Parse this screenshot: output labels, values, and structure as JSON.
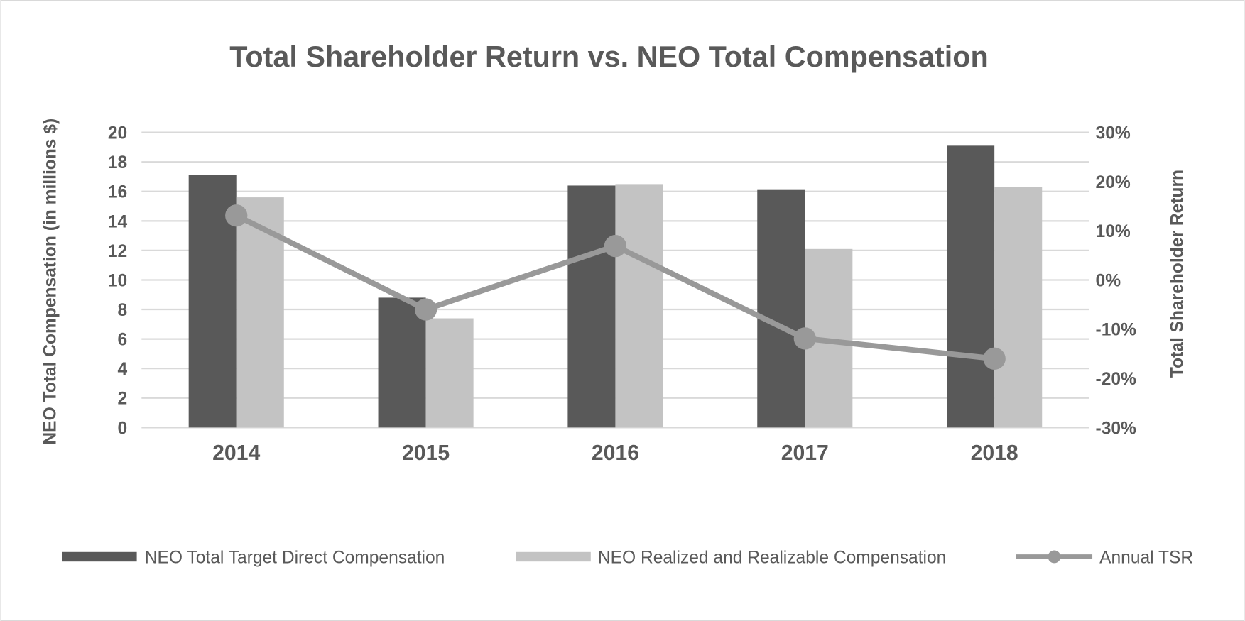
{
  "chart_data": {
    "type": "bar+line",
    "title": "Total Shareholder Return vs. NEO Total Compensation",
    "categories": [
      "2014",
      "2015",
      "2016",
      "2017",
      "2018"
    ],
    "ylabel": "NEO Total Compensation (in millions $)",
    "y2label": "Total Shareholder Return",
    "ylim": [
      0,
      20
    ],
    "yticks": [
      "0",
      "2",
      "4",
      "6",
      "8",
      "10",
      "12",
      "14",
      "16",
      "18",
      "20"
    ],
    "y2lim": [
      -30,
      30
    ],
    "y2ticks": [
      "-30%",
      "-20%",
      "-10%",
      "0%",
      "10%",
      "20%",
      "30%"
    ],
    "grid": true,
    "legend_position": "bottom",
    "series": [
      {
        "name": "NEO Total Target Direct Compensation",
        "type": "bar",
        "axis": "left",
        "color": "#595959",
        "values": [
          17.1,
          8.8,
          16.4,
          16.1,
          19.1
        ]
      },
      {
        "name": "NEO Realized and Realizable Compensation",
        "type": "bar",
        "axis": "left",
        "color": "#c3c3c3",
        "values": [
          15.6,
          7.4,
          16.5,
          12.1,
          16.3
        ]
      },
      {
        "name": "Annual TSR",
        "type": "line",
        "axis": "right",
        "color": "#999999",
        "values": [
          13.1,
          -6.0,
          6.9,
          -11.9,
          -16.0
        ]
      }
    ]
  }
}
